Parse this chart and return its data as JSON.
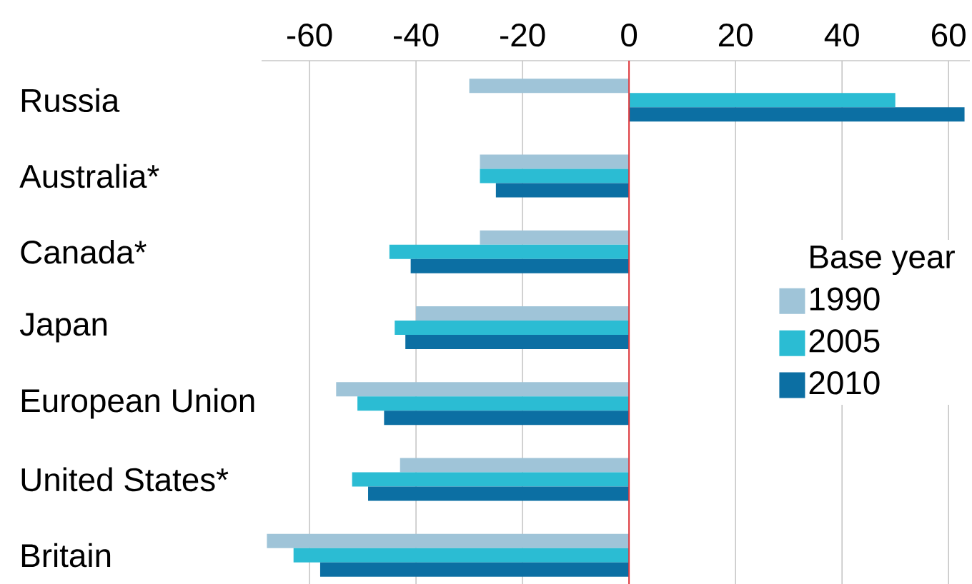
{
  "chart_data": {
    "type": "bar",
    "orientation": "horizontal",
    "categories": [
      "Russia",
      "Australia*",
      "Canada*",
      "Japan",
      "European Union",
      "United States*",
      "Britain"
    ],
    "series": [
      {
        "name": "1990",
        "color": "#9fc4d8",
        "values": [
          -30,
          -28,
          -28,
          -40,
          -55,
          -43,
          -68
        ]
      },
      {
        "name": "2005",
        "color": "#2bbcd3",
        "values": [
          50,
          -28,
          -45,
          -44,
          -51,
          -52,
          -63
        ]
      },
      {
        "name": "2010",
        "color": "#0c6fa3",
        "values": [
          63,
          -25,
          -41,
          -42,
          -46,
          -49,
          -58
        ]
      }
    ],
    "legend_title": "Base year",
    "xlim": [
      -69,
      64
    ],
    "xticks": [
      -60,
      -40,
      -20,
      0,
      20,
      40,
      60
    ],
    "grid": "x",
    "legend": "center right",
    "ref_lines": [
      {
        "axis": "x",
        "value": 0,
        "color": "#e0393e"
      }
    ]
  }
}
